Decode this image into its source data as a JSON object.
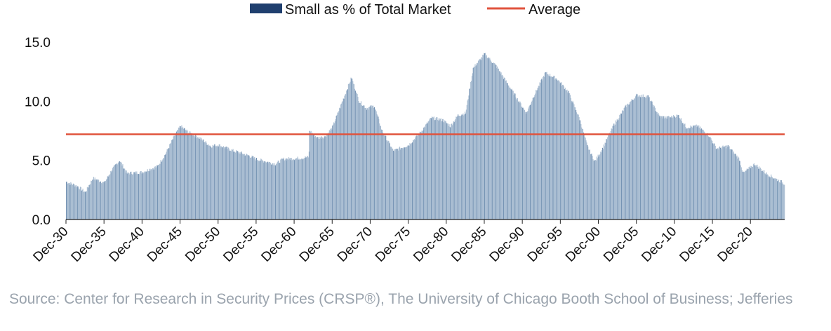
{
  "chart_data": {
    "type": "bar",
    "series": [
      {
        "name": "Small as % of Total Market",
        "color": "#1f3f6e",
        "fill": "#a9bdd2"
      },
      {
        "name": "Average",
        "color": "#e0533d",
        "value": 7.2
      }
    ],
    "x_start_year": 1930,
    "x_end_year": 2024.5,
    "xticks": [
      "Dec-30",
      "Dec-35",
      "Dec-40",
      "Dec-45",
      "Dec-50",
      "Dec-55",
      "Dec-60",
      "Dec-65",
      "Dec-70",
      "Dec-75",
      "Dec-80",
      "Dec-85",
      "Dec-90",
      "Dec-95",
      "Dec-00",
      "Dec-05",
      "Dec-10",
      "Dec-15",
      "Dec-20"
    ],
    "yticks": [
      "0.0",
      "5.0",
      "10.0",
      "15.0"
    ],
    "ylim": [
      0,
      15
    ],
    "keyframes": [
      [
        1930.0,
        3.2
      ],
      [
        1931.5,
        2.8
      ],
      [
        1932.5,
        2.3
      ],
      [
        1933.5,
        3.5
      ],
      [
        1935.0,
        3.1
      ],
      [
        1936.0,
        4.2
      ],
      [
        1937.0,
        5.0
      ],
      [
        1938.0,
        3.9
      ],
      [
        1940.0,
        4.0
      ],
      [
        1942.0,
        4.5
      ],
      [
        1943.0,
        5.5
      ],
      [
        1944.0,
        6.8
      ],
      [
        1945.0,
        7.9
      ],
      [
        1946.0,
        7.4
      ],
      [
        1947.5,
        6.9
      ],
      [
        1949.0,
        6.2
      ],
      [
        1950.0,
        6.3
      ],
      [
        1952.0,
        5.8
      ],
      [
        1954.0,
        5.4
      ],
      [
        1955.0,
        5.1
      ],
      [
        1957.5,
        4.7
      ],
      [
        1958.5,
        5.1
      ],
      [
        1961.0,
        5.2
      ],
      [
        1961.9,
        5.3
      ],
      [
        1962.0,
        7.5
      ],
      [
        1963.0,
        6.9
      ],
      [
        1964.0,
        7.0
      ],
      [
        1965.0,
        7.8
      ],
      [
        1966.0,
        9.5
      ],
      [
        1967.5,
        12.0
      ],
      [
        1968.5,
        10.0
      ],
      [
        1969.5,
        9.4
      ],
      [
        1970.5,
        9.6
      ],
      [
        1971.5,
        7.5
      ],
      [
        1973.0,
        5.8
      ],
      [
        1975.0,
        6.3
      ],
      [
        1976.5,
        7.3
      ],
      [
        1978.0,
        8.6
      ],
      [
        1979.5,
        8.4
      ],
      [
        1980.5,
        7.9
      ],
      [
        1981.5,
        8.8
      ],
      [
        1982.5,
        9.0
      ],
      [
        1983.5,
        12.8
      ],
      [
        1985.0,
        14.0
      ],
      [
        1986.5,
        13.0
      ],
      [
        1988.0,
        11.5
      ],
      [
        1989.5,
        10.0
      ],
      [
        1990.5,
        9.0
      ],
      [
        1991.5,
        10.5
      ],
      [
        1993.0,
        12.4
      ],
      [
        1994.5,
        11.9
      ],
      [
        1996.0,
        10.8
      ],
      [
        1997.5,
        8.5
      ],
      [
        1998.5,
        6.2
      ],
      [
        1999.5,
        4.9
      ],
      [
        2000.5,
        6.0
      ],
      [
        2002.0,
        8.0
      ],
      [
        2003.5,
        9.5
      ],
      [
        2005.0,
        10.5
      ],
      [
        2006.5,
        10.4
      ],
      [
        2008.0,
        8.7
      ],
      [
        2009.0,
        8.6
      ],
      [
        2010.5,
        8.8
      ],
      [
        2011.5,
        7.8
      ],
      [
        2013.0,
        7.9
      ],
      [
        2014.5,
        7.1
      ],
      [
        2015.5,
        6.0
      ],
      [
        2017.0,
        6.2
      ],
      [
        2018.5,
        5.1
      ],
      [
        2019.0,
        3.9
      ],
      [
        2020.5,
        4.7
      ],
      [
        2022.0,
        3.9
      ],
      [
        2024.5,
        3.0
      ]
    ]
  },
  "source": "Source: Center for Research in Security Prices (CRSP®), The University of Chicago Booth School of Business; Jefferies"
}
